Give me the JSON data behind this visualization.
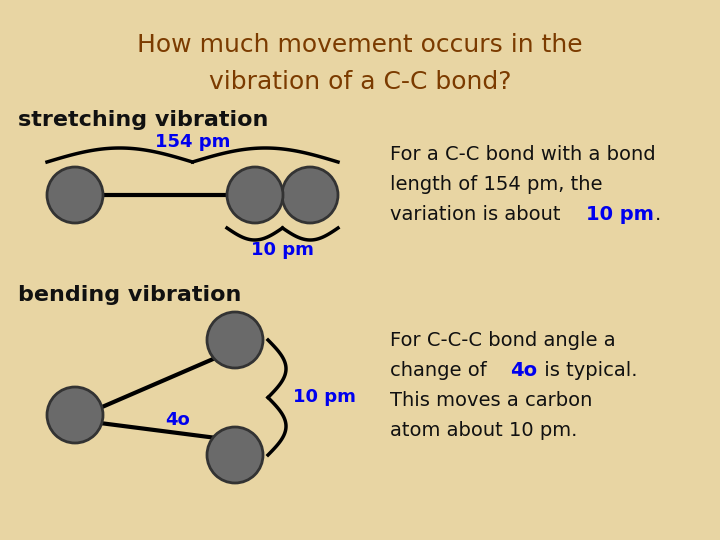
{
  "title_line1": "How much movement occurs in the",
  "title_line2": "vibration of a C-C bond?",
  "title_color": "#7B3B00",
  "background_color": "#E8D5A3",
  "text_blue": "#0000EE",
  "text_black": "#111111",
  "atom_color": "#6A6A6A",
  "atom_edge_color": "#333333",
  "label_stretching": "stretching vibration",
  "label_bending": "bending vibration",
  "stretch_label_154": "154 pm",
  "stretch_label_10": "10 pm",
  "bend_label_4": "4o",
  "bend_label_10": "10 pm",
  "right_text_stretch_1": "For a C-C bond with a bond",
  "right_text_stretch_2": "length of 154 pm, the",
  "right_text_stretch_3a": "variation is about ",
  "right_text_stretch_3b": "10 pm",
  "right_text_stretch_3c": ".",
  "right_text_bend_1": "For C-C-C bond angle a",
  "right_text_bend_2a": "change of ",
  "right_text_bend_2b": "4o",
  "right_text_bend_2c": " is typical.",
  "right_text_bend_3": "This moves a carbon",
  "right_text_bend_4": "atom about 10 pm."
}
